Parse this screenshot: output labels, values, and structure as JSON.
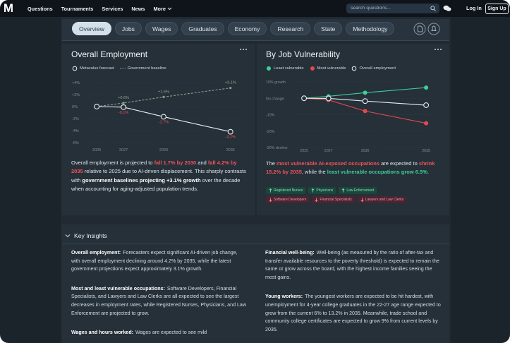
{
  "nav": {
    "logo": "M",
    "links": [
      "Questions",
      "Tournaments",
      "Services",
      "News",
      "More"
    ],
    "search_placeholder": "search questions...",
    "login": "Log In",
    "signup": "Sign Up"
  },
  "tabs": {
    "items": [
      "Overview",
      "Jobs",
      "Wages",
      "Graduates",
      "Economy",
      "Research",
      "State",
      "Methodology"
    ],
    "active": 0
  },
  "chart_data": [
    {
      "type": "line",
      "title": "Overall Employment",
      "x": [
        2025,
        2027,
        2030,
        2035
      ],
      "xlim": [
        2024.2,
        2035.7
      ],
      "xticks": [
        2025,
        2027,
        2030,
        2035
      ],
      "ylim": [
        -6,
        4
      ],
      "yticks": [
        {
          "value": 4,
          "label": "+4%"
        },
        {
          "value": 2,
          "label": "+2%"
        },
        {
          "value": 0,
          "label": "0%"
        },
        {
          "value": -2,
          "label": "-2%"
        },
        {
          "value": -4,
          "label": "-4%"
        },
        {
          "value": -6,
          "label": "-6%"
        }
      ],
      "grid": true,
      "series": [
        {
          "name": "Metaculus forecast",
          "color": "#e8edf1",
          "marker": "hollow",
          "line_style": "solid",
          "label_color": "#f0525a",
          "label_position": "below",
          "values": [
            0,
            -0.1,
            -1.7,
            -4.2
          ],
          "value_labels": [
            null,
            "-0.1%",
            "-1.7%",
            "-4.2%"
          ]
        },
        {
          "name": "Government baseline",
          "color": "#8f9b8c",
          "marker": "filled",
          "line_style": "dashed",
          "label_color": "#97a394",
          "label_position": "above",
          "values": [
            0,
            0.6,
            1.6,
            3.1
          ],
          "value_labels": [
            null,
            "+0.6%",
            "+1.6%",
            "+3.1%"
          ]
        }
      ],
      "summary": [
        "Overall employment is projected to ",
        "fall 1.7% by 2030",
        " and ",
        "fall 4.2% by 2035",
        " relative to 2025 due to AI-driven displacement. This sharply contrasts with ",
        "government baselines projecting +3.1% growth",
        " over the decade when accounting for aging-adjusted population trends."
      ]
    },
    {
      "type": "line",
      "title": "By Job Vulnerability",
      "x": [
        2025,
        2027,
        2030,
        2035
      ],
      "xlim": [
        2024.36,
        2035.34
      ],
      "xticks": [
        2025,
        2027,
        2030,
        2035
      ],
      "ylim": [
        -30,
        10
      ],
      "yticks": [
        {
          "value": 10,
          "label": "10% growth"
        },
        {
          "value": 0,
          "label": "No change"
        },
        {
          "value": -10,
          "label": "-10%"
        },
        {
          "value": -20,
          "label": "-20%"
        },
        {
          "value": -30,
          "label": "-30% decline"
        }
      ],
      "grid": true,
      "series": [
        {
          "name": "Least vulnerable",
          "color": "#3ecf9a",
          "marker": "filled",
          "line_style": "solid",
          "values": [
            0,
            1.2,
            3.4,
            6.5
          ]
        },
        {
          "name": "Most vulnerable",
          "color": "#e5484d",
          "marker": "filled",
          "line_style": "solid",
          "values": [
            0,
            -1.0,
            -7.8,
            -15.2
          ]
        },
        {
          "name": "Overall employment",
          "color": "#e8edf1",
          "marker": "hollow",
          "line_style": "solid",
          "values": [
            0,
            -0.1,
            -1.7,
            -4.2
          ]
        }
      ],
      "summary": [
        "The ",
        "most vulnerable AI-exposed occupations",
        " are expected to ",
        "shrink 15.2% by 2035",
        ", while the ",
        "least vulnerable occupations grow 6.5%",
        "."
      ],
      "tags": {
        "growing": [
          "Registered Nurses",
          "Physicians",
          "Law Enforcement"
        ],
        "declining": [
          "Software Developers",
          "Financial Specialists",
          "Lawyers and Law Clerks"
        ]
      }
    }
  ],
  "key_insights": {
    "title": "Key Insights",
    "left": [
      {
        "label": "Overall employment:",
        "text": "Forecasters expect significant AI-driven job change, with overall employment declining around 4.2% by 2035, while the latest government projections expect approximately 3.1% growth."
      },
      {
        "label": "Most and least vulnerable occupations:",
        "text": "Software Developers, Financial Specialists, and Lawyers and Law Clerks are all expected to see the largest decreases in employment rates, while Registered Nurses, Physicians, and Law Enforcement are projected to grow."
      },
      {
        "label": "Wages and hours worked:",
        "text": "Wages are expected to see mild"
      }
    ],
    "right": [
      {
        "label": "Financial well-being:",
        "text": "Well-being (as measured by the ratio of after-tax and transfer available resources to the poverty threshold) is expected to remain the same or grow across the board, with the highest income families seeing the most gains."
      },
      {
        "label": "Young workers:",
        "text": "The youngest workers are expected to be hit hardest, with unemployment for 4-year college graduates in the 22-27 age range expected to grow from the current 6% to 13.2% in 2035. Meanwhile, trade school and community college certificates are expected to grow 9% from current levels by 2035."
      }
    ]
  }
}
